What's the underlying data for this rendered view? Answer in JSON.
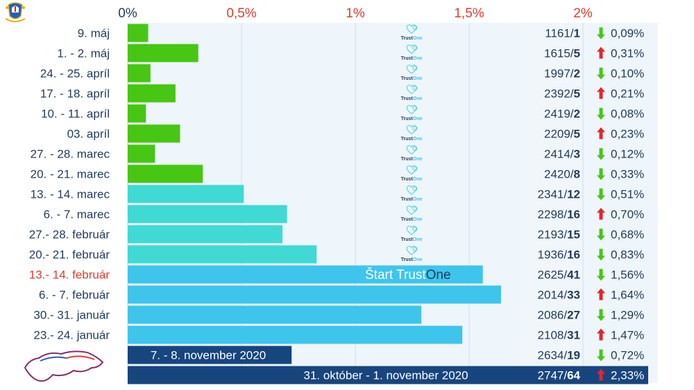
{
  "colors": {
    "panel": "#eef5fb",
    "grid": "#cfe0ee",
    "green": "#47c613",
    "teal": "#40d9d4",
    "sky": "#3ec5ec",
    "navy": "#17457e",
    "tick": "#e23b2b",
    "tick_zero": "#1f3b5a",
    "up": "#e3262b",
    "down": "#47c613"
  },
  "icons": {
    "top_left": "coat-of-arms-icon",
    "bottom_left": "slovakia-map-icon",
    "watermark": "trustone-heart-globe-icon",
    "up": "red-up-arrow-icon",
    "down": "green-down-arrow-icon"
  },
  "watermark_text": {
    "part1": "Trust",
    "part2": "One"
  },
  "start_label": {
    "part1": "Štart Trust",
    "part2": "One"
  },
  "chart_data": {
    "type": "bar",
    "orientation": "horizontal",
    "x_ticks": [
      "0%",
      "0,5%",
      "1%",
      "1,5%",
      "2%"
    ],
    "xlim": [
      0,
      2
    ],
    "grid": true,
    "rows": [
      {
        "label": "9. máj",
        "value": 0.09,
        "tested": "1161/",
        "positive": "1",
        "trend": "down",
        "percent": "0,09%",
        "color": "green"
      },
      {
        "label": "1. -  2. máj",
        "value": 0.31,
        "tested": "1615/",
        "positive": "5",
        "trend": "up",
        "percent": "0,31%",
        "color": "green"
      },
      {
        "label": "24. - 25. apríl",
        "value": 0.1,
        "tested": "1997/",
        "positive": "2",
        "trend": "down",
        "percent": "0,10%",
        "color": "green"
      },
      {
        "label": "17. - 18. apríl",
        "value": 0.21,
        "tested": "2392/",
        "positive": "5",
        "trend": "up",
        "percent": "0,21%",
        "color": "green"
      },
      {
        "label": "10. - 11. apríl",
        "value": 0.08,
        "tested": "2419/",
        "positive": "2",
        "trend": "down",
        "percent": "0,08%",
        "color": "green"
      },
      {
        "label": "03. apríl",
        "value": 0.23,
        "tested": "2209/",
        "positive": "5",
        "trend": "up",
        "percent": "0,23%",
        "color": "green"
      },
      {
        "label": "27. - 28. marec",
        "value": 0.12,
        "tested": "2414/",
        "positive": "3",
        "trend": "down",
        "percent": "0,12%",
        "color": "green"
      },
      {
        "label": "20. - 21. marec",
        "value": 0.33,
        "tested": "2420/",
        "positive": "8",
        "trend": "down",
        "percent": "0,33%",
        "color": "green"
      },
      {
        "label": "13. - 14. marec",
        "value": 0.51,
        "tested": "2341/",
        "positive": "12",
        "trend": "down",
        "percent": "0,51%",
        "color": "teal"
      },
      {
        "label": "6. - 7. marec",
        "value": 0.7,
        "tested": "2298/",
        "positive": "16",
        "trend": "up",
        "percent": "0,70%",
        "color": "teal"
      },
      {
        "label": "27.- 28. február",
        "value": 0.68,
        "tested": "2193/",
        "positive": "15",
        "trend": "down",
        "percent": "0,68%",
        "color": "teal"
      },
      {
        "label": "20.- 21. február",
        "value": 0.83,
        "tested": "1936/",
        "positive": "16",
        "trend": "down",
        "percent": "0,83%",
        "color": "teal"
      },
      {
        "label": "13.- 14. február",
        "value": 1.56,
        "tested": "2625/",
        "positive": "41",
        "trend": "down",
        "percent": "1,56%",
        "color": "sky",
        "highlight": true
      },
      {
        "label": "6. - 7. február",
        "value": 1.64,
        "tested": "2014/",
        "positive": "33",
        "trend": "up",
        "percent": "1,64%",
        "color": "sky"
      },
      {
        "label": "30.- 31. január",
        "value": 1.29,
        "tested": "2086/",
        "positive": "27",
        "trend": "down",
        "percent": "1,29%",
        "color": "sky"
      },
      {
        "label": "23.- 24. január",
        "value": 1.47,
        "tested": "2108/",
        "positive": "31",
        "trend": "up",
        "percent": "1,47%",
        "color": "sky"
      },
      {
        "label": "",
        "inbar_label": "7. - 8. november 2020",
        "value": 0.72,
        "tested": "2634/",
        "positive": "19",
        "trend": "down",
        "percent": "0,72%",
        "color": "navy"
      },
      {
        "label": "",
        "inbar_label": "31. október - 1. november 2020",
        "value": 2.33,
        "tested": "2747/",
        "positive": "64",
        "trend": "up",
        "percent": "2,33%",
        "color": "navy",
        "full_row": true
      }
    ]
  }
}
